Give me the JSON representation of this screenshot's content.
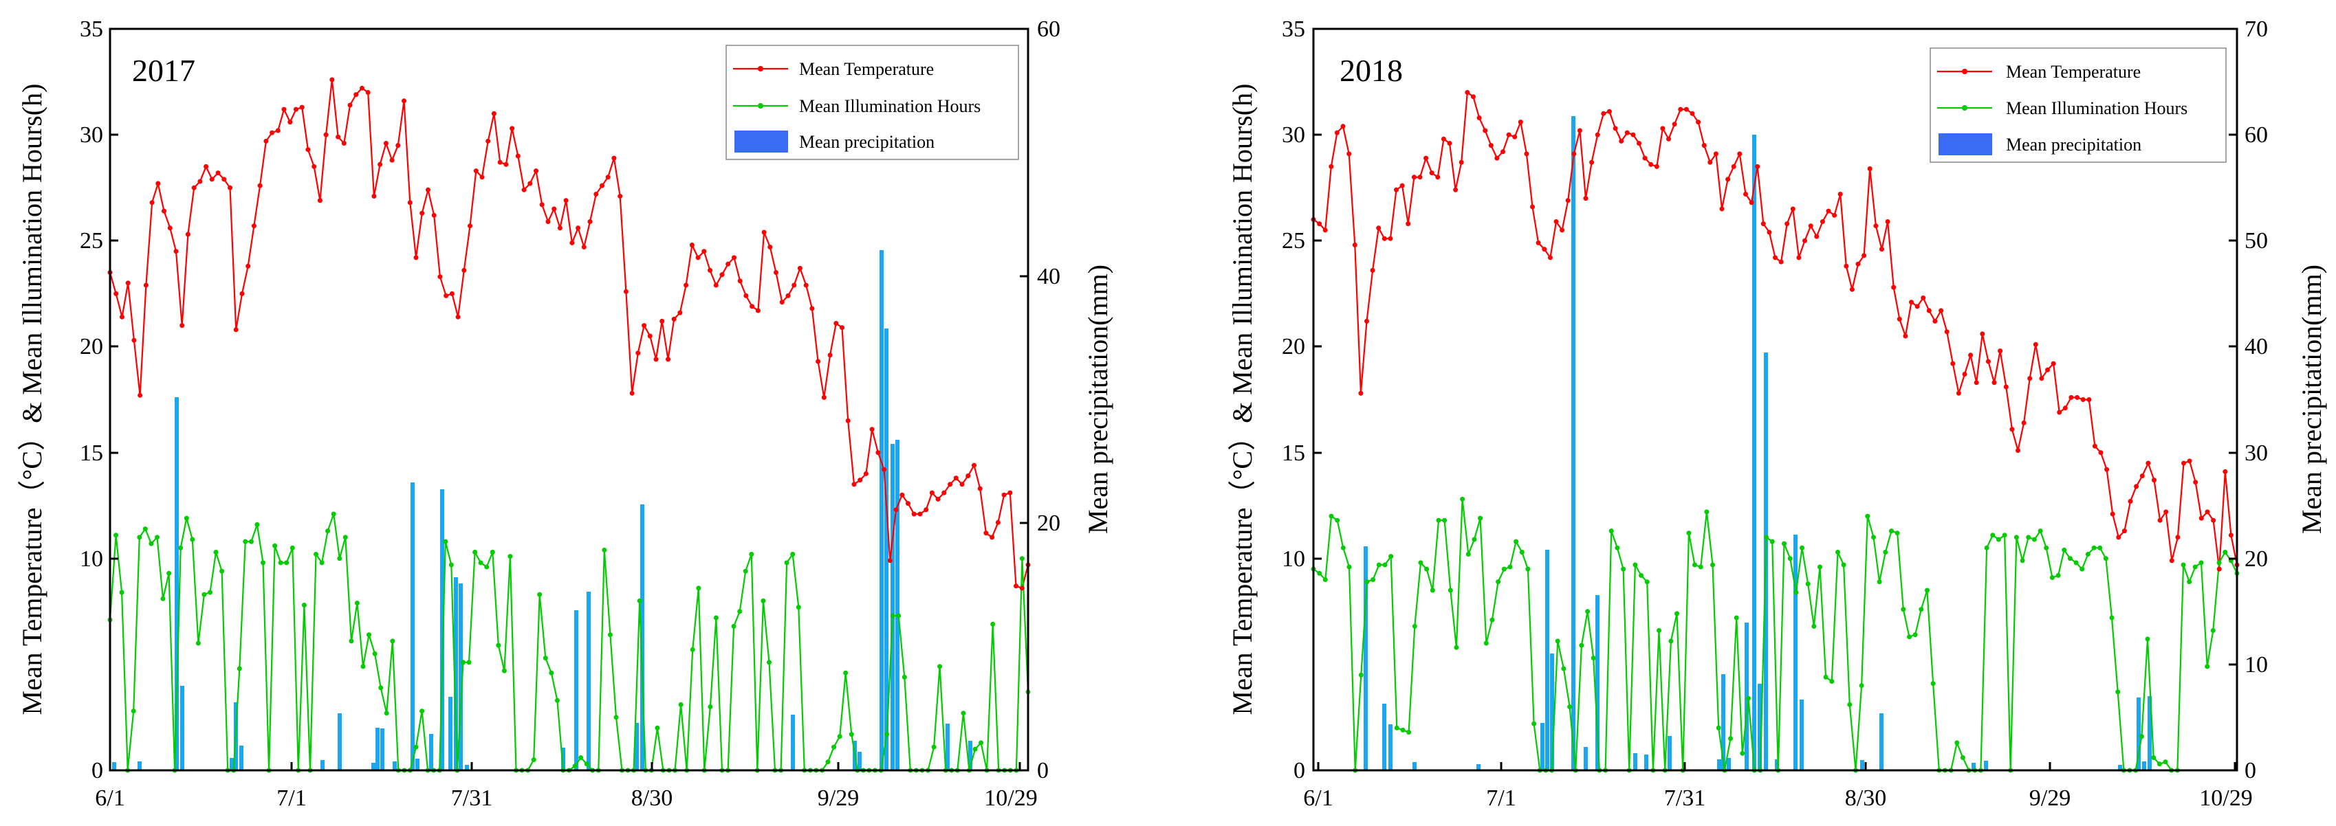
{
  "colors": {
    "temperature": "#ff0000",
    "illumination": "#00cc00",
    "precipitation": "#1aa7ef",
    "legend_precip": "#3a6bf5"
  },
  "chart_data": [
    {
      "type": "bar+line",
      "year": "2017",
      "categories": [
        "6/1",
        "7/1",
        "7/31",
        "8/30",
        "9/29",
        "10/29"
      ],
      "y_left_label": "Mean Temperature（°C）&  Mean Illumination Hours(h)",
      "y_right_label": "Mean precipitation(mm)",
      "y_left_lim": [
        0,
        35
      ],
      "y_left_ticks": [
        0,
        10,
        15,
        20,
        25,
        30,
        35
      ],
      "y_right_lim": [
        0,
        60
      ],
      "y_right_ticks": [
        0,
        20,
        40,
        60
      ],
      "legend": [
        "Mean Temperature",
        "Mean Illumination Hours",
        "Mean precipitation"
      ],
      "temperature": [
        23.5,
        22.5,
        21.4,
        23.0,
        20.3,
        17.7,
        22.9,
        26.8,
        27.7,
        26.4,
        25.6,
        24.5,
        21.0,
        25.3,
        27.5,
        27.8,
        28.5,
        27.9,
        28.2,
        27.9,
        27.5,
        20.8,
        22.5,
        23.8,
        25.7,
        27.6,
        29.7,
        30.1,
        30.2,
        31.2,
        30.6,
        31.2,
        31.3,
        29.3,
        28.5,
        26.9,
        30.0,
        32.6,
        29.9,
        29.6,
        31.4,
        31.9,
        32.2,
        32.0,
        27.1,
        28.6,
        29.6,
        28.8,
        29.5,
        31.6,
        26.8,
        24.2,
        26.3,
        27.4,
        26.2,
        23.3,
        22.4,
        22.5,
        21.4,
        23.6,
        25.7,
        28.3,
        28.0,
        29.7,
        31.0,
        28.7,
        28.6,
        30.3,
        29.0,
        27.4,
        27.7,
        28.3,
        26.7,
        25.9,
        26.5,
        25.6,
        26.9,
        24.9,
        25.6,
        24.7,
        25.9,
        27.2,
        27.6,
        28.0,
        28.9,
        27.1,
        22.6,
        17.8,
        19.7,
        21.0,
        20.5,
        19.4,
        21.2,
        19.4,
        21.3,
        21.6,
        22.9,
        24.8,
        24.2,
        24.5,
        23.6,
        22.9,
        23.4,
        23.9,
        24.2,
        23.1,
        22.4,
        21.9,
        21.7,
        25.4,
        24.7,
        23.5,
        22.1,
        22.4,
        22.9,
        23.7,
        22.9,
        21.8,
        19.3,
        17.6,
        19.6,
        21.1,
        20.9,
        16.5,
        13.5,
        13.7,
        14.0,
        16.1,
        15.0,
        14.2,
        9.9,
        12.3,
        13.0,
        12.6,
        12.1,
        12.1,
        12.3,
        13.1,
        12.8,
        13.1,
        13.5,
        13.8,
        13.5,
        13.9,
        14.4,
        13.3,
        11.2,
        11.0,
        11.7,
        13.0,
        13.1,
        8.7,
        8.6,
        9.7
      ],
      "illumination": [
        7.1,
        11.1,
        8.4,
        0,
        2.8,
        11.0,
        11.4,
        10.7,
        11.0,
        8.1,
        9.3,
        0,
        10.5,
        11.9,
        10.9,
        6.0,
        8.3,
        8.4,
        10.3,
        9.4,
        0,
        0,
        4.8,
        10.8,
        10.8,
        11.6,
        9.8,
        0,
        10.6,
        9.8,
        9.8,
        10.5,
        0,
        7.8,
        0,
        10.2,
        9.8,
        11.3,
        12.1,
        10.0,
        11.0,
        6.1,
        7.9,
        4.9,
        6.4,
        5.5,
        3.9,
        2.7,
        6.1,
        0,
        0,
        0,
        1.1,
        2.8,
        0,
        0,
        0,
        10.8,
        9.7,
        0,
        5.1,
        5.1,
        10.3,
        9.8,
        9.6,
        10.3,
        5.9,
        4.7,
        10.1,
        0,
        0,
        0,
        0.5,
        8.3,
        5.3,
        4.6,
        3.3,
        0,
        0,
        0.2,
        0.6,
        0.3,
        0,
        0,
        10.4,
        6.4,
        2.5,
        0,
        0,
        0,
        8.0,
        0,
        0,
        2.0,
        0,
        0,
        0,
        3.1,
        0,
        5.7,
        8.6,
        0,
        3.0,
        7.2,
        0,
        0,
        6.8,
        7.5,
        9.4,
        10.2,
        0,
        8.0,
        5.1,
        0,
        0,
        9.8,
        10.2,
        7.7,
        0,
        0,
        0,
        0,
        0.4,
        1.1,
        1.6,
        4.6,
        1.7,
        0,
        0,
        0,
        0,
        0,
        1.7,
        7.3,
        7.3,
        4.4,
        0,
        0,
        0,
        0,
        1.1,
        4.9,
        0,
        0,
        0,
        2.7,
        0,
        1.0,
        1.3,
        0,
        6.9,
        0,
        0,
        0,
        0,
        10.0,
        3.7
      ]
    },
    {
      "type": "bar+line",
      "year": "2018",
      "categories": [
        "6/1",
        "7/1",
        "7/31",
        "8/30",
        "9/29",
        "10/29"
      ],
      "y_left_label": "Mean Temperature（°C）&  Mean Illumination Hours(h)",
      "y_right_label": "Mean precipitation(mm)",
      "y_left_lim": [
        0,
        35
      ],
      "y_left_ticks": [
        0,
        10,
        15,
        20,
        25,
        30,
        35
      ],
      "y_right_lim": [
        0,
        70
      ],
      "y_right_ticks": [
        0,
        10,
        20,
        30,
        40,
        50,
        60,
        70
      ],
      "legend": [
        "Mean Temperature",
        "Mean Illumination Hours",
        "Mean precipitation"
      ],
      "temperature": [
        26.0,
        25.8,
        25.5,
        28.5,
        30.1,
        30.4,
        29.1,
        24.8,
        17.8,
        21.2,
        23.6,
        25.6,
        25.1,
        25.1,
        27.4,
        27.6,
        25.8,
        28.0,
        28.0,
        28.9,
        28.2,
        28.0,
        29.8,
        29.6,
        27.4,
        28.7,
        32.0,
        31.8,
        30.8,
        30.2,
        29.5,
        28.9,
        29.2,
        30.0,
        29.9,
        30.6,
        29.1,
        26.6,
        24.9,
        24.6,
        24.2,
        25.9,
        25.5,
        26.9,
        29.1,
        30.2,
        27.0,
        28.7,
        30.0,
        31.0,
        31.1,
        30.3,
        29.7,
        30.1,
        30.0,
        29.6,
        28.9,
        28.6,
        28.5,
        30.3,
        29.8,
        30.5,
        31.2,
        31.2,
        31.0,
        30.6,
        29.5,
        28.7,
        29.1,
        26.5,
        27.9,
        28.5,
        29.1,
        27.2,
        26.8,
        28.5,
        25.8,
        25.4,
        24.2,
        24.0,
        25.8,
        26.5,
        24.2,
        25.0,
        25.7,
        25.2,
        25.9,
        26.4,
        26.2,
        27.2,
        23.8,
        22.7,
        23.9,
        24.3,
        28.4,
        25.7,
        24.6,
        25.9,
        22.8,
        21.3,
        20.5,
        22.1,
        21.9,
        22.3,
        21.7,
        21.2,
        21.7,
        20.7,
        19.2,
        17.8,
        18.7,
        19.6,
        18.3,
        20.6,
        19.3,
        18.3,
        19.8,
        18.1,
        16.1,
        15.1,
        16.4,
        18.5,
        20.1,
        18.5,
        18.9,
        19.2,
        16.9,
        17.1,
        17.6,
        17.6,
        17.5,
        17.5,
        15.3,
        15.0,
        14.2,
        12.1,
        11.0,
        11.3,
        12.7,
        13.4,
        13.9,
        14.5,
        13.7,
        11.8,
        12.2,
        9.9,
        11.0,
        14.5,
        14.6,
        13.6,
        11.9,
        12.2,
        11.8,
        9.5,
        14.1,
        11.1,
        9.7
      ],
      "illumination": [
        9.5,
        9.3,
        9.0,
        12.0,
        11.8,
        10.5,
        9.6,
        0,
        4.5,
        8.9,
        9.0,
        9.7,
        9.7,
        10.1,
        2.0,
        1.9,
        1.8,
        6.8,
        9.8,
        9.5,
        8.5,
        11.8,
        11.8,
        8.5,
        5.8,
        12.8,
        10.2,
        10.9,
        11.9,
        6.0,
        7.1,
        8.9,
        9.5,
        9.6,
        10.8,
        10.3,
        9.5,
        2.2,
        0,
        0,
        0,
        6.1,
        4.8,
        3.0,
        0,
        5.9,
        7.5,
        5.3,
        0,
        0,
        11.3,
        10.5,
        9.5,
        0,
        9.7,
        9.2,
        8.9,
        0,
        6.6,
        0,
        6.1,
        7.4,
        0,
        11.2,
        9.7,
        9.6,
        12.2,
        9.7,
        2.0,
        0,
        1.5,
        7.2,
        0.8,
        3.4,
        0,
        0,
        11.0,
        10.8,
        0,
        10.7,
        10.0,
        8.4,
        10.5,
        8.8,
        6.8,
        9.6,
        4.4,
        4.2,
        10.3,
        9.7,
        3.1,
        0,
        4.0,
        12.0,
        11.0,
        8.9,
        10.3,
        11.3,
        11.2,
        7.6,
        6.3,
        6.4,
        7.6,
        8.5,
        4.1,
        0,
        0,
        0,
        1.3,
        0.6,
        0,
        0,
        0,
        10.5,
        11.1,
        10.9,
        11.1,
        0,
        11.0,
        9.9,
        11.0,
        10.9,
        11.3,
        10.5,
        9.1,
        9.2,
        10.4,
        10.0,
        9.8,
        9.5,
        10.2,
        10.5,
        10.5,
        10.0,
        7.2,
        3.7,
        0,
        0,
        0,
        1.6,
        6.2,
        0.6,
        0.3,
        0.4,
        0,
        0,
        9.7,
        8.9,
        9.6,
        9.8,
        4.9,
        6.6,
        9.8,
        10.3,
        9.9,
        9.3
      ]
    }
  ]
}
